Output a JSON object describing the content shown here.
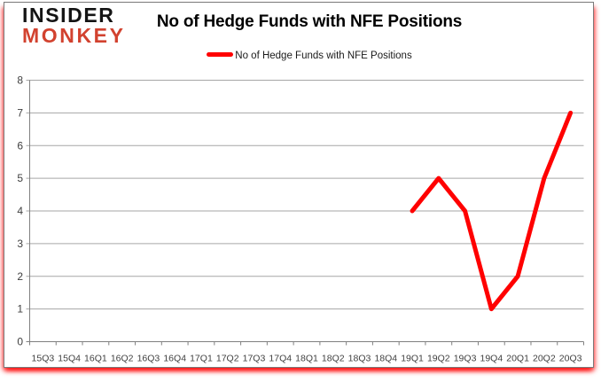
{
  "logo": {
    "line1": "INSIDER",
    "line2": "MONKEY"
  },
  "header": {
    "title": "No of Hedge Funds with NFE Positions"
  },
  "legend": {
    "label": "No of Hedge Funds with NFE Positions"
  },
  "colors": {
    "series_red": "#ff0000",
    "logo_red": "#d2422f",
    "logo_black": "#141414",
    "gridline": "#a6a6a6",
    "axis": "#808080",
    "tick_label": "#3f3f3f",
    "frame_border": "#7a7a7a"
  },
  "chart_data": {
    "type": "line",
    "title": "No of Hedge Funds with NFE Positions",
    "categories": [
      "15Q3",
      "15Q4",
      "16Q1",
      "16Q2",
      "16Q3",
      "16Q4",
      "17Q1",
      "17Q2",
      "17Q3",
      "17Q4",
      "18Q1",
      "18Q2",
      "18Q3",
      "18Q4",
      "19Q1",
      "19Q2",
      "19Q3",
      "19Q4",
      "20Q1",
      "20Q2",
      "20Q3"
    ],
    "series": [
      {
        "name": "No of Hedge Funds with NFE Positions",
        "color": "#ff0000",
        "values": [
          null,
          null,
          null,
          null,
          null,
          null,
          null,
          null,
          null,
          null,
          null,
          null,
          null,
          null,
          4,
          5,
          4,
          1,
          2,
          5,
          7
        ]
      }
    ],
    "ylim": [
      0,
      8
    ],
    "yticks": [
      0,
      1,
      2,
      3,
      4,
      5,
      6,
      7,
      8
    ],
    "grid": true,
    "legend_position": "top"
  }
}
